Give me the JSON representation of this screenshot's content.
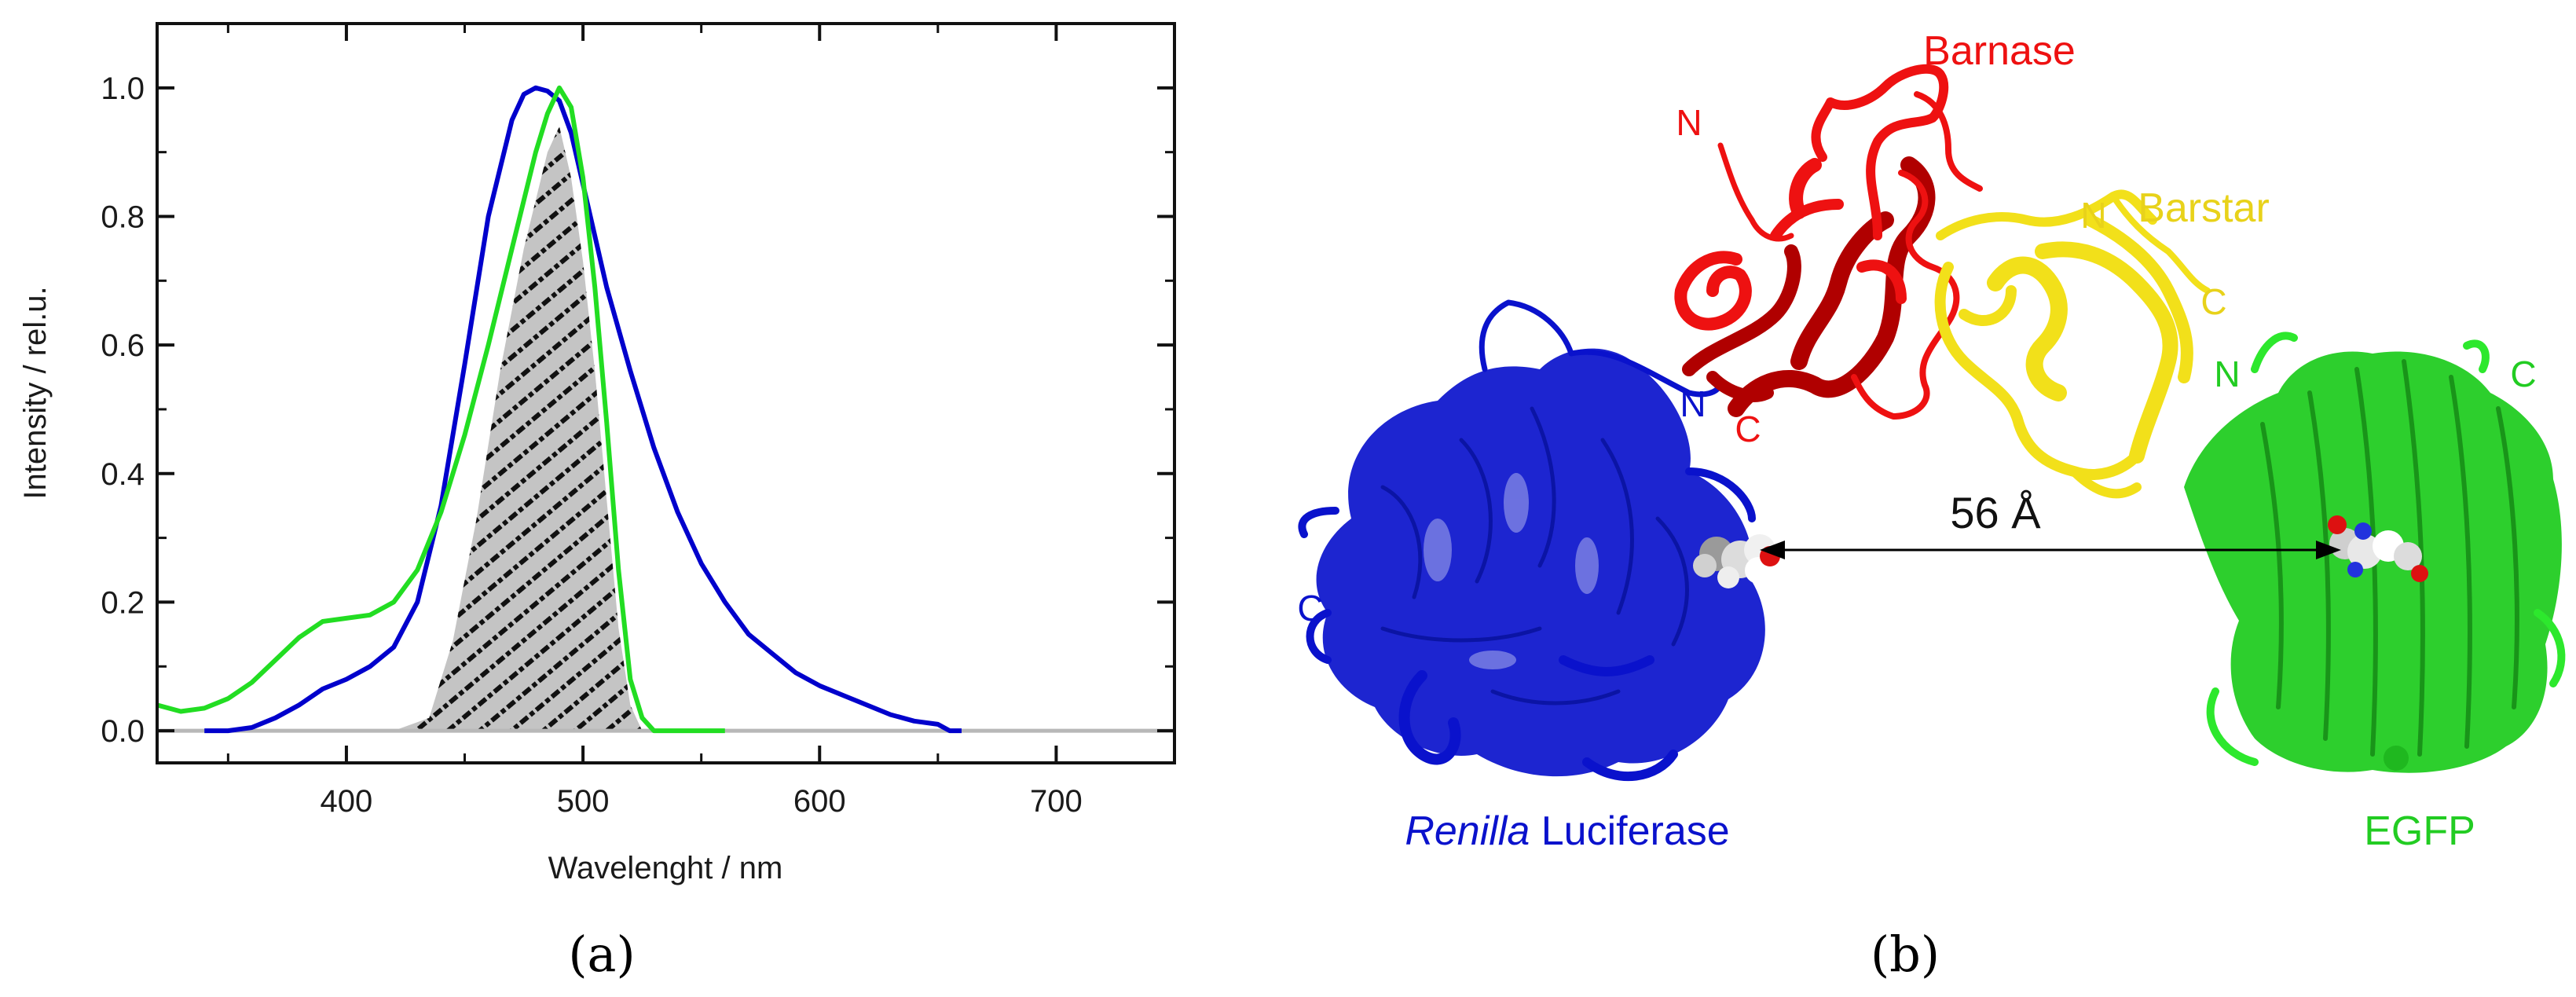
{
  "panel_a": {
    "caption": "(a)",
    "chart_data": {
      "type": "line",
      "title": "",
      "xlabel": "Wavelenght / nm",
      "ylabel": "Intensity / rel.u.",
      "xlim": [
        320,
        750
      ],
      "ylim": [
        -0.05,
        1.1
      ],
      "xticks": [
        400,
        500,
        600,
        700
      ],
      "yticks": [
        0.0,
        0.2,
        0.4,
        0.6,
        0.8,
        1.0
      ],
      "xtick_labels": [
        "400",
        "500",
        "600",
        "700"
      ],
      "ytick_labels": [
        "0.0",
        "0.2",
        "0.4",
        "0.6",
        "0.8",
        "1.0"
      ],
      "grid": false,
      "legend": "none",
      "baseline": {
        "color": "#b8b8b8",
        "x": [
          320,
          750
        ],
        "y": [
          0,
          0
        ]
      },
      "overlap_area": {
        "fill": "#c0c0c0",
        "hatch": "#111111",
        "x": [
          420,
          435,
          445,
          455,
          465,
          475,
          485,
          490,
          495,
          500,
          505,
          510,
          515,
          520,
          525
        ],
        "y": [
          0.0,
          0.02,
          0.14,
          0.33,
          0.56,
          0.75,
          0.9,
          0.94,
          0.86,
          0.73,
          0.56,
          0.36,
          0.16,
          0.04,
          0.0
        ]
      },
      "series": [
        {
          "color": "#0000cc",
          "x": [
            340,
            350,
            360,
            370,
            380,
            390,
            400,
            410,
            420,
            430,
            440,
            450,
            460,
            470,
            475,
            480,
            485,
            490,
            495,
            500,
            510,
            520,
            530,
            540,
            550,
            560,
            570,
            580,
            590,
            600,
            610,
            620,
            630,
            640,
            650,
            655,
            660
          ],
          "y": [
            0.0,
            0.0,
            0.005,
            0.02,
            0.04,
            0.065,
            0.08,
            0.1,
            0.13,
            0.2,
            0.35,
            0.57,
            0.8,
            0.95,
            0.99,
            1.0,
            0.995,
            0.98,
            0.93,
            0.85,
            0.69,
            0.56,
            0.44,
            0.34,
            0.26,
            0.2,
            0.15,
            0.12,
            0.09,
            0.07,
            0.055,
            0.04,
            0.025,
            0.015,
            0.01,
            0.0,
            0.0
          ]
        },
        {
          "color": "#22dd22",
          "x": [
            320,
            330,
            340,
            350,
            360,
            370,
            380,
            390,
            400,
            410,
            420,
            430,
            440,
            450,
            460,
            470,
            480,
            485,
            490,
            495,
            500,
            505,
            510,
            515,
            520,
            525,
            530,
            540,
            560
          ],
          "y": [
            0.04,
            0.03,
            0.035,
            0.05,
            0.075,
            0.11,
            0.145,
            0.17,
            0.175,
            0.18,
            0.2,
            0.25,
            0.34,
            0.46,
            0.6,
            0.75,
            0.9,
            0.96,
            1.0,
            0.97,
            0.86,
            0.69,
            0.48,
            0.25,
            0.08,
            0.02,
            0.0,
            0.0,
            0.0
          ]
        }
      ]
    }
  },
  "panel_b": {
    "caption": "(b)",
    "labels": {
      "barnase": "Barnase",
      "barstar": "Barstar",
      "luciferase_italic": "Renilla",
      "luciferase_rest": " Luciferase",
      "egfp": "EGFP",
      "distance": "56 Å",
      "terminus_n": "N",
      "terminus_c": "C"
    },
    "colors": {
      "barnase": "#ee1111",
      "barnase_dark": "#b00000",
      "barstar": "#f2e01a",
      "luciferase": "#0a12cc",
      "egfp": "#22cc22",
      "arrow": "#000000"
    }
  }
}
